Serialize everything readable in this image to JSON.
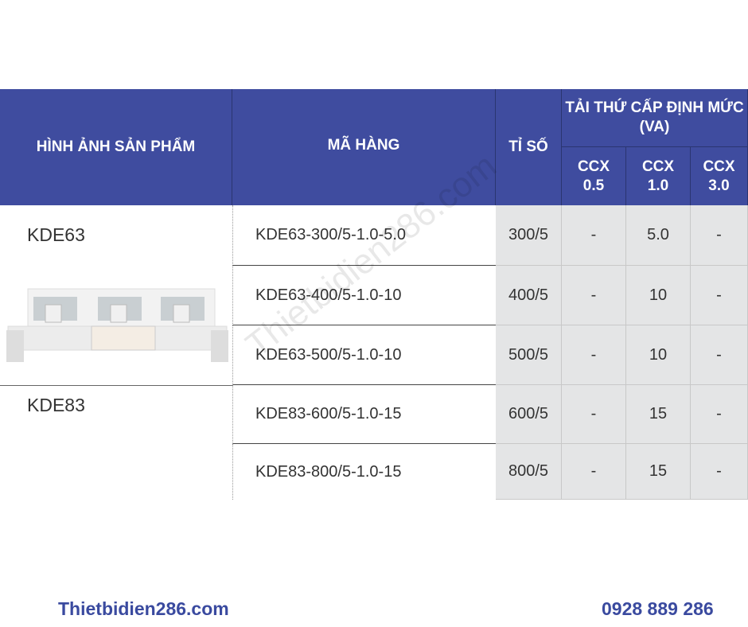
{
  "header": {
    "image": "HÌNH ẢNH SẢN PHẨM",
    "code": "MÃ HÀNG",
    "ratio": "TỈ SỐ",
    "load": "TẢI THỨ CẤP ĐỊNH MỨC (VA)",
    "ccx05": "CCX 0.5",
    "ccx10": "CCX 1.0",
    "ccx30": "CCX 3.0"
  },
  "groups": [
    "KDE63",
    "KDE83"
  ],
  "rows": [
    {
      "code": "KDE63-300/5-1.0-5.0",
      "ratio": "300/5",
      "c05": "-",
      "c10": "5.0",
      "c30": "-"
    },
    {
      "code": "KDE63-400/5-1.0-10",
      "ratio": "400/5",
      "c05": "-",
      "c10": "10",
      "c30": "-"
    },
    {
      "code": "KDE63-500/5-1.0-10",
      "ratio": "500/5",
      "c05": "-",
      "c10": "10",
      "c30": "-"
    },
    {
      "code": "KDE83-600/5-1.0-15",
      "ratio": "600/5",
      "c05": "-",
      "c10": "15",
      "c30": "-"
    },
    {
      "code": "KDE83-800/5-1.0-15",
      "ratio": "800/5",
      "c05": "-",
      "c10": "15",
      "c30": "-"
    }
  ],
  "watermark": "Thietbidien286.com",
  "footer": {
    "website": "Thietbidien286.com",
    "phone": "0928 889 286"
  },
  "colors": {
    "header": "#3f4c9f",
    "footer": "#3a4a9f"
  }
}
